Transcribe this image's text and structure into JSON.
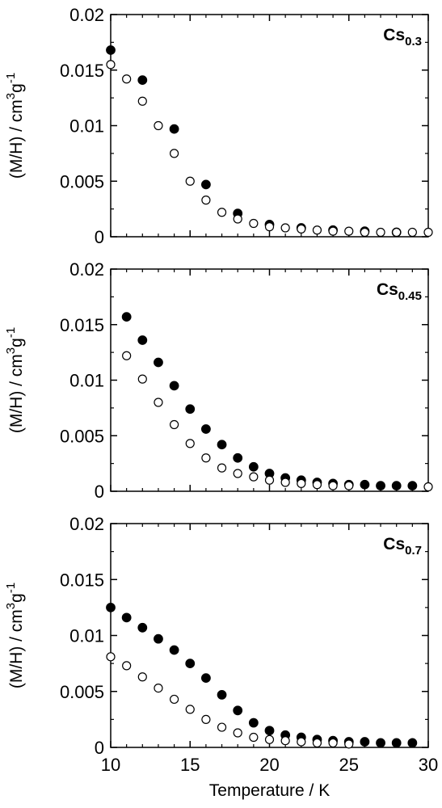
{
  "chart_data": [
    {
      "type": "scatter",
      "panel_label": "Cs",
      "panel_label_sub": "0.3",
      "ylabel": "(M/H) / cm3g-1",
      "xlim": [
        10,
        30
      ],
      "ylim": [
        0,
        0.02
      ],
      "xticks": [
        "10",
        "15",
        "20",
        "25",
        "30"
      ],
      "yticks": [
        "0",
        "0.005",
        "0.01",
        "0.015",
        "0.02"
      ],
      "show_x_tick_labels": false,
      "series": [
        {
          "marker": "filled-circle",
          "points": [
            [
              10,
              0.0168
            ],
            [
              12,
              0.0141
            ],
            [
              14,
              0.0097
            ],
            [
              16,
              0.0047
            ],
            [
              18,
              0.0021
            ],
            [
              20,
              0.0011
            ],
            [
              22,
              0.0008
            ],
            [
              24,
              0.0006
            ],
            [
              26,
              0.0005
            ],
            [
              28,
              0.0004
            ]
          ]
        },
        {
          "marker": "open-circle",
          "points": [
            [
              10,
              0.0155
            ],
            [
              11,
              0.0142
            ],
            [
              12,
              0.0122
            ],
            [
              13,
              0.01
            ],
            [
              14,
              0.0075
            ],
            [
              15,
              0.005
            ],
            [
              16,
              0.0033
            ],
            [
              17,
              0.0022
            ],
            [
              18,
              0.0016
            ],
            [
              19,
              0.0012
            ],
            [
              20,
              0.0009
            ],
            [
              21,
              0.0008
            ],
            [
              22,
              0.0007
            ],
            [
              23,
              0.0006
            ],
            [
              24,
              0.0005
            ],
            [
              25,
              0.0005
            ],
            [
              26,
              0.0004
            ],
            [
              27,
              0.0004
            ],
            [
              28,
              0.0004
            ],
            [
              29,
              0.0004
            ],
            [
              30,
              0.0004
            ]
          ]
        }
      ]
    },
    {
      "type": "scatter",
      "panel_label": "Cs",
      "panel_label_sub": "0.45",
      "ylabel": "(M/H) / cm3g-1",
      "xlim": [
        10,
        30
      ],
      "ylim": [
        0,
        0.02
      ],
      "xticks": [
        "10",
        "15",
        "20",
        "25",
        "30"
      ],
      "yticks": [
        "0",
        "0.005",
        "0.01",
        "0.015",
        "0.02"
      ],
      "show_x_tick_labels": false,
      "series": [
        {
          "marker": "filled-circle",
          "points": [
            [
              11,
              0.0157
            ],
            [
              12,
              0.0136
            ],
            [
              13,
              0.0116
            ],
            [
              14,
              0.0095
            ],
            [
              15,
              0.0074
            ],
            [
              16,
              0.0056
            ],
            [
              17,
              0.0042
            ],
            [
              18,
              0.003
            ],
            [
              19,
              0.0022
            ],
            [
              20,
              0.0016
            ],
            [
              21,
              0.0012
            ],
            [
              22,
              0.001
            ],
            [
              23,
              0.0008
            ],
            [
              24,
              0.0007
            ],
            [
              25,
              0.0006
            ],
            [
              26,
              0.0006
            ],
            [
              27,
              0.0005
            ],
            [
              28,
              0.0005
            ],
            [
              29,
              0.0005
            ]
          ]
        },
        {
          "marker": "open-circle",
          "points": [
            [
              11,
              0.0122
            ],
            [
              12,
              0.0101
            ],
            [
              13,
              0.008
            ],
            [
              14,
              0.006
            ],
            [
              15,
              0.0043
            ],
            [
              16,
              0.003
            ],
            [
              17,
              0.0021
            ],
            [
              18,
              0.0016
            ],
            [
              19,
              0.0013
            ],
            [
              20,
              0.001
            ],
            [
              21,
              0.0008
            ],
            [
              22,
              0.0007
            ],
            [
              23,
              0.0006
            ],
            [
              24,
              0.0005
            ],
            [
              25,
              0.0005
            ],
            [
              30,
              0.0004
            ]
          ]
        }
      ]
    },
    {
      "type": "scatter",
      "panel_label": "Cs",
      "panel_label_sub": "0.7",
      "ylabel": "(M/H) / cm3g-1",
      "xlabel": "Temperature / K",
      "xlim": [
        10,
        30
      ],
      "ylim": [
        0,
        0.02
      ],
      "xticks": [
        "10",
        "15",
        "20",
        "25",
        "30"
      ],
      "yticks": [
        "0",
        "0.005",
        "0.01",
        "0.015",
        "0.02"
      ],
      "show_x_tick_labels": true,
      "series": [
        {
          "marker": "filled-circle",
          "points": [
            [
              10,
              0.0125
            ],
            [
              11,
              0.0116
            ],
            [
              12,
              0.0107
            ],
            [
              13,
              0.0097
            ],
            [
              14,
              0.0087
            ],
            [
              15,
              0.0075
            ],
            [
              16,
              0.0062
            ],
            [
              17,
              0.0047
            ],
            [
              18,
              0.0033
            ],
            [
              19,
              0.0022
            ],
            [
              20,
              0.0015
            ],
            [
              21,
              0.0011
            ],
            [
              22,
              0.0009
            ],
            [
              23,
              0.0007
            ],
            [
              24,
              0.0006
            ],
            [
              25,
              0.0005
            ],
            [
              26,
              0.0005
            ],
            [
              27,
              0.0004
            ],
            [
              28,
              0.0004
            ],
            [
              29,
              0.0004
            ]
          ]
        },
        {
          "marker": "open-circle",
          "points": [
            [
              10,
              0.0081
            ],
            [
              11,
              0.0073
            ],
            [
              12,
              0.0063
            ],
            [
              13,
              0.0053
            ],
            [
              14,
              0.0043
            ],
            [
              15,
              0.0034
            ],
            [
              16,
              0.0025
            ],
            [
              17,
              0.0018
            ],
            [
              18,
              0.0013
            ],
            [
              19,
              0.0009
            ],
            [
              20,
              0.0007
            ],
            [
              21,
              0.0006
            ],
            [
              22,
              0.0005
            ],
            [
              23,
              0.0004
            ],
            [
              24,
              0.0004
            ],
            [
              25,
              0.0003
            ]
          ]
        }
      ]
    }
  ]
}
